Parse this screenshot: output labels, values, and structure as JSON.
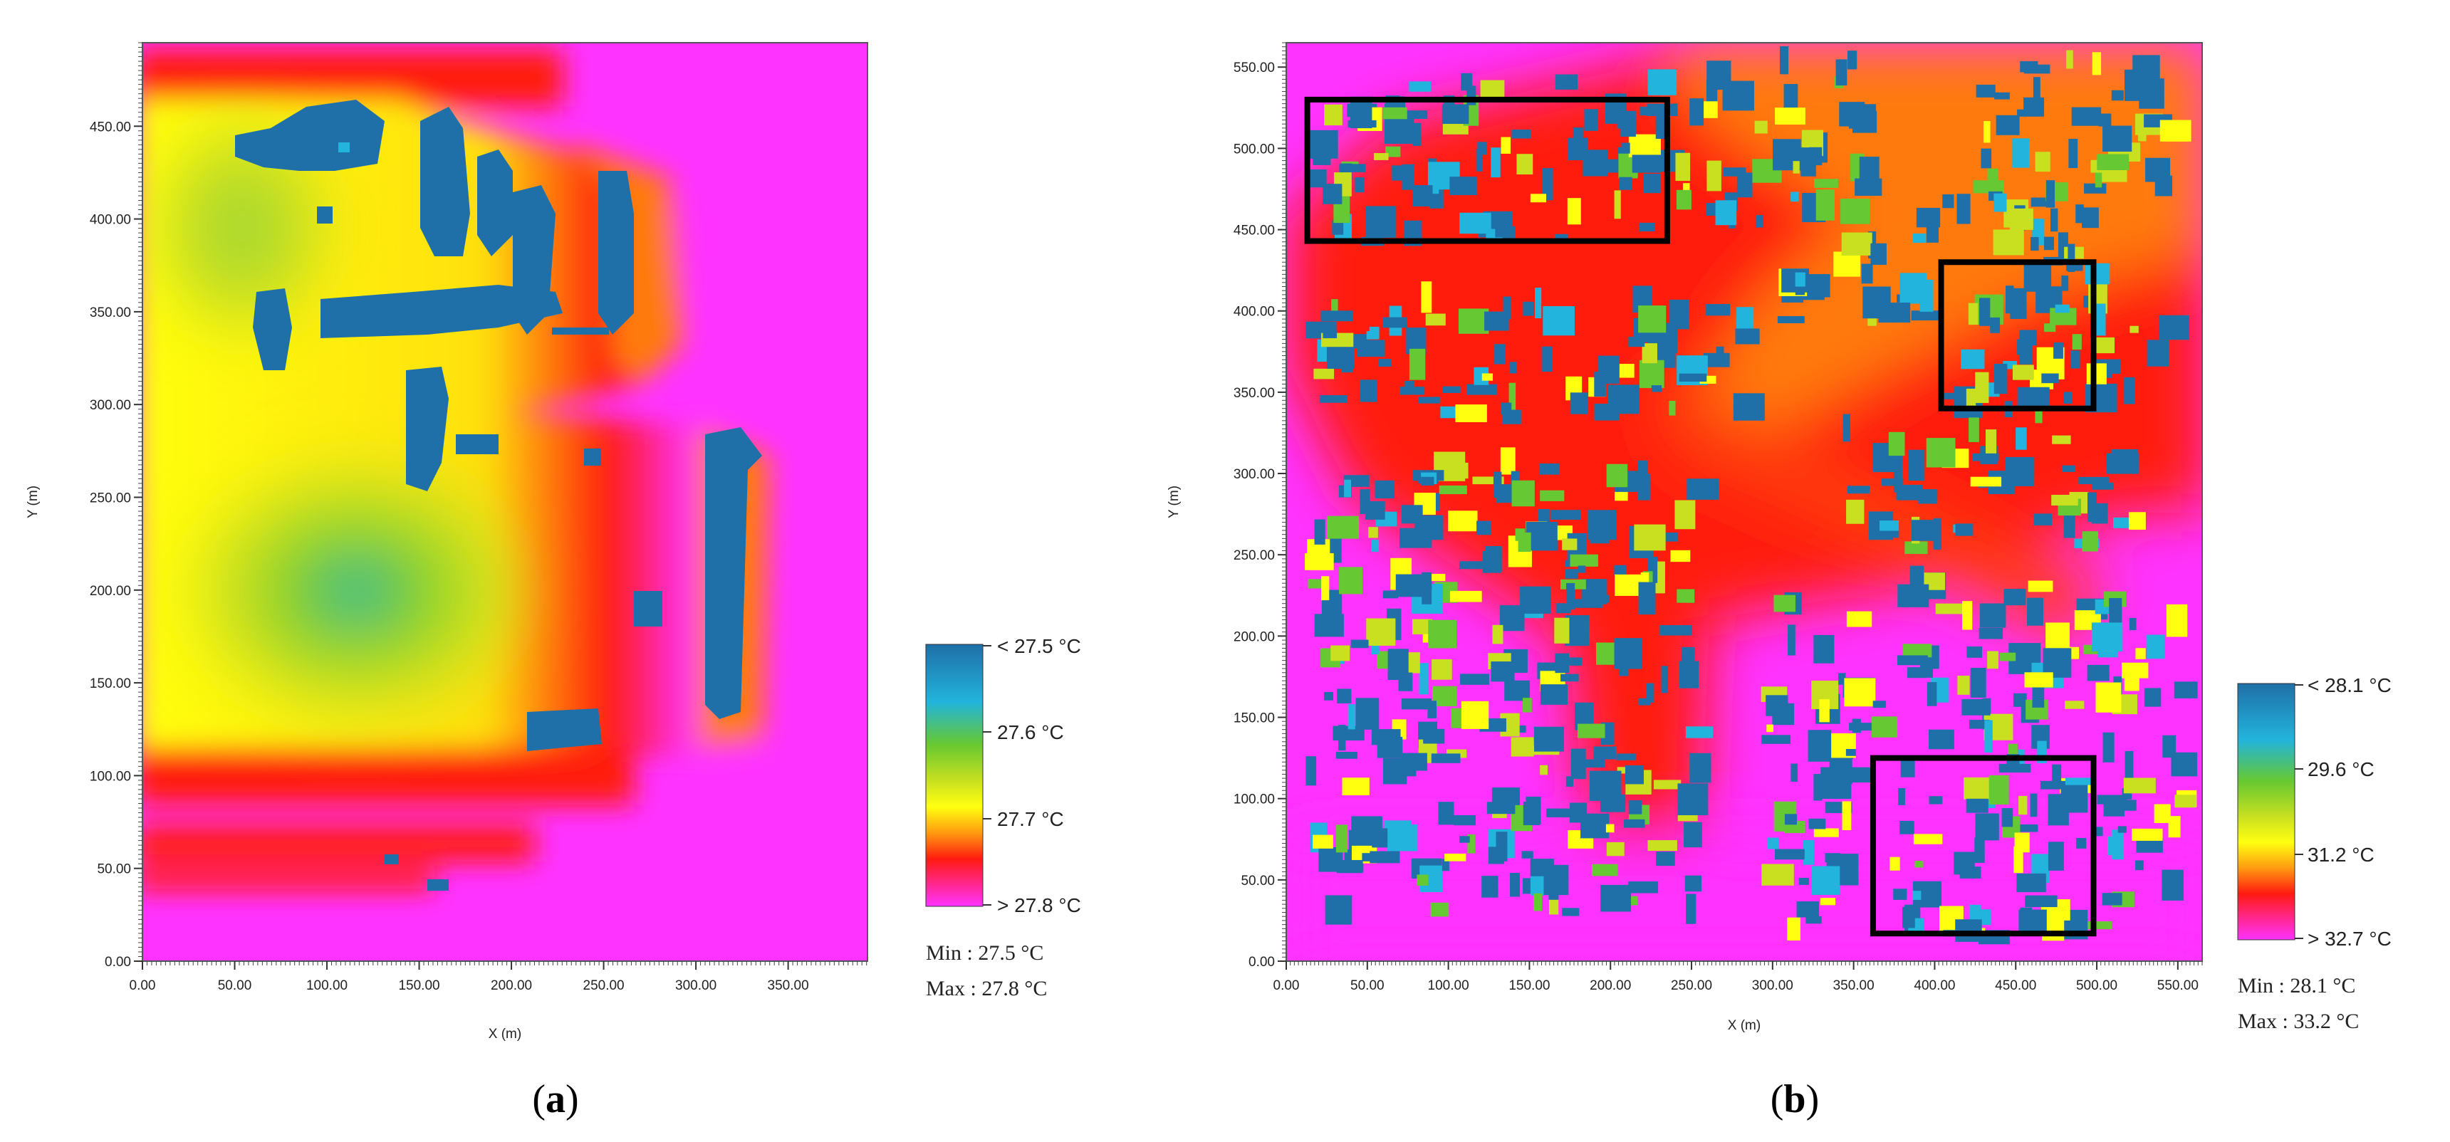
{
  "colors": {
    "magenta": "#ff33ff",
    "red": "#ff1a10",
    "orange": "#ff7a10",
    "yellow": "#ffff10",
    "yellowgreen": "#c8e020",
    "green": "#66c832",
    "cyan": "#22b4dc",
    "building_blue": "#1f6fa8"
  },
  "chart_data": [
    {
      "type": "heatmap",
      "panel": "a",
      "caption": "(a)",
      "xlabel": "X (m)",
      "ylabel": "Y (m)",
      "xlim": [
        0,
        393
      ],
      "ylim": [
        0,
        495
      ],
      "xticks": [
        "0.00",
        "50.00",
        "100.00",
        "150.00",
        "200.00",
        "250.00",
        "300.00",
        "350.00"
      ],
      "xtick_values": [
        0,
        50,
        100,
        150,
        200,
        250,
        300,
        350
      ],
      "yticks": [
        "0.00",
        "50.00",
        "100.00",
        "150.00",
        "200.00",
        "250.00",
        "300.00",
        "350.00",
        "400.00",
        "450.00"
      ],
      "ytick_values": [
        0,
        50,
        100,
        150,
        200,
        250,
        300,
        350,
        400,
        450
      ],
      "legend_labels": [
        "< 27.5 °C",
        "27.6 °C",
        "27.7 °C",
        "> 27.8 °C"
      ],
      "min_label": "Min : 27.5 °C",
      "max_label": "Max : 27.8 °C",
      "value_range_celsius": [
        27.5,
        27.8
      ],
      "grid": false,
      "legend_placement": "right"
    },
    {
      "type": "heatmap",
      "panel": "b",
      "caption": "(b)",
      "xlabel": "X (m)",
      "ylabel": "Y (m)",
      "xlim": [
        0,
        565
      ],
      "ylim": [
        0,
        565
      ],
      "xticks": [
        "0.00",
        "50.00",
        "100.00",
        "150.00",
        "200.00",
        "250.00",
        "300.00",
        "350.00",
        "400.00",
        "450.00",
        "500.00",
        "550.00"
      ],
      "xtick_values": [
        0,
        50,
        100,
        150,
        200,
        250,
        300,
        350,
        400,
        450,
        500,
        550
      ],
      "yticks": [
        "0.00",
        "50.00",
        "100.00",
        "150.00",
        "200.00",
        "250.00",
        "300.00",
        "350.00",
        "400.00",
        "450.00",
        "500.00",
        "550.00"
      ],
      "ytick_values": [
        0,
        50,
        100,
        150,
        200,
        250,
        300,
        350,
        400,
        450,
        500,
        550
      ],
      "legend_labels": [
        "< 28.1 °C",
        "29.6 °C",
        "31.2 °C",
        "> 32.7 °C"
      ],
      "min_label": "Min : 28.1 °C",
      "max_label": "Max : 33.2 °C",
      "value_range_celsius": [
        28.1,
        33.2
      ],
      "grid": false,
      "legend_placement": "right",
      "highlight_boxes": [
        {
          "x": [
            13,
            235
          ],
          "y": [
            443,
            530
          ]
        },
        {
          "x": [
            404,
            498
          ],
          "y": [
            340,
            430
          ]
        },
        {
          "x": [
            362,
            498
          ],
          "y": [
            17,
            125
          ]
        }
      ]
    }
  ]
}
